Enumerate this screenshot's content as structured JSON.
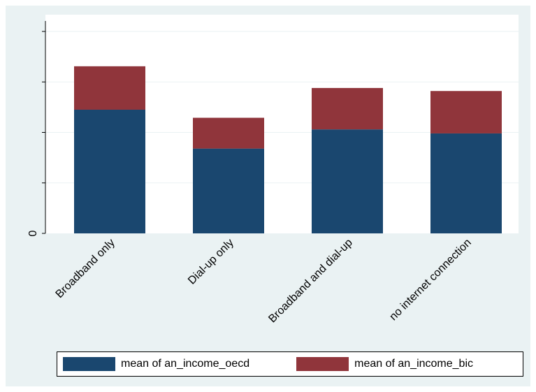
{
  "chart_data": {
    "type": "bar",
    "stacked": true,
    "categories": [
      "Broadband only",
      "Dial-up only",
      "Broadband and dial-up",
      "no internet connection"
    ],
    "series": [
      {
        "name": "mean of an_income_oecd",
        "color": "#1a476f",
        "values": [
          2.45,
          1.68,
          2.06,
          1.98
        ]
      },
      {
        "name": "mean of an_income_bic",
        "color": "#90353b",
        "values": [
          0.86,
          0.61,
          0.82,
          0.84
        ]
      }
    ],
    "ylim": [
      0,
      4
    ],
    "yticks": [
      {
        "value": 0,
        "label": "0"
      },
      {
        "value": 1,
        "label": ""
      },
      {
        "value": 2,
        "label": ""
      },
      {
        "value": 3,
        "label": ""
      },
      {
        "value": 4,
        "label": ""
      }
    ],
    "title": "",
    "xlabel": "",
    "ylabel": "",
    "grid": true,
    "legend_position": "bottom",
    "background": "#eaf2f3",
    "plot_background": "#ffffff",
    "grid_color": "#eaf2f3"
  }
}
